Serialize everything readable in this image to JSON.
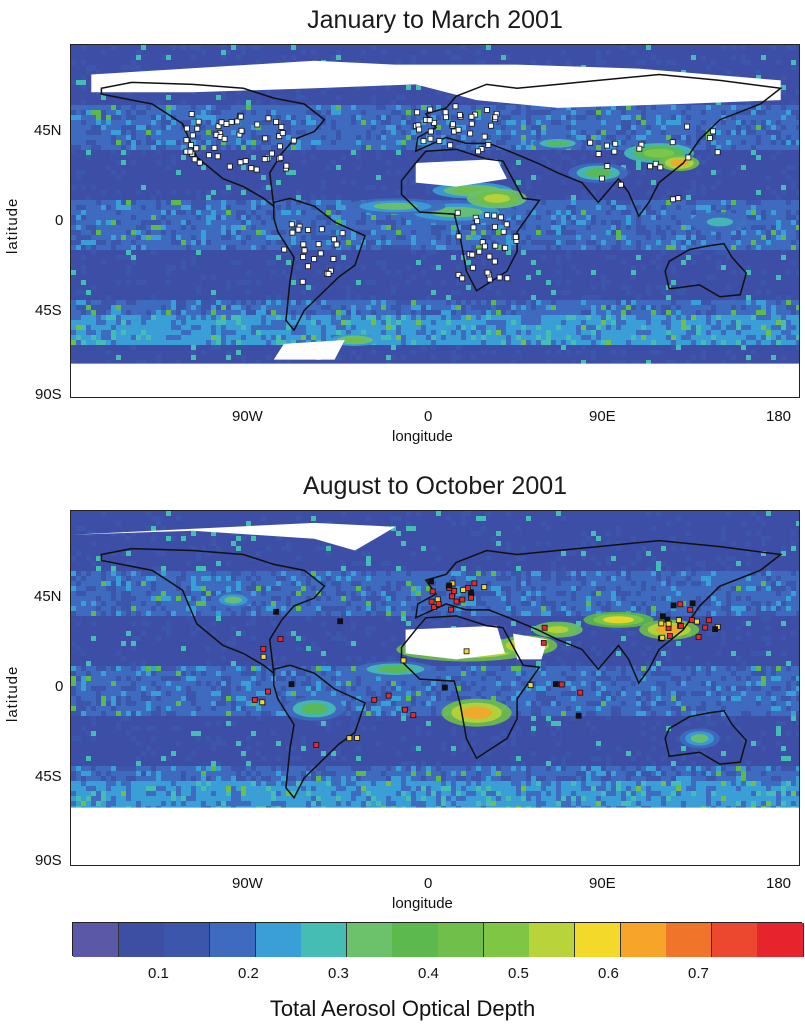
{
  "panels": [
    {
      "title": "January to March 2001",
      "marker": "open-square",
      "lat_ticks": [
        "45N",
        "0",
        "45S",
        "90S"
      ],
      "lon_ticks": [
        "90W",
        "0",
        "90E",
        "180"
      ],
      "xlabel": "longitude",
      "ylabel": "latitude"
    },
    {
      "title": "August to October 2001",
      "marker": "filled-square",
      "lat_ticks": [
        "45N",
        "0",
        "45S",
        "90S"
      ],
      "lon_ticks": [
        "90W",
        "0",
        "90E",
        "180"
      ],
      "xlabel": "longitude",
      "ylabel": "latitude"
    }
  ],
  "colorbar": {
    "title": "Total Aerosol Optical Depth",
    "tick_labels": [
      "0.1",
      "0.2",
      "0.3",
      "0.4",
      "0.5",
      "0.6",
      "0.7"
    ],
    "colors": [
      "#5c58a8",
      "#3c4fa3",
      "#3b56ab",
      "#3e6bbf",
      "#3a9fd6",
      "#45bdb4",
      "#6bc26a",
      "#5cb94d",
      "#6fbf4a",
      "#7fc645",
      "#b9d33a",
      "#f3d92a",
      "#f6a42a",
      "#f0742a",
      "#ec4830",
      "#e7232e"
    ]
  },
  "colors": {
    "ocean_base": "#3c4ea6",
    "ice": "#ffffff",
    "coast": "#111111"
  }
}
